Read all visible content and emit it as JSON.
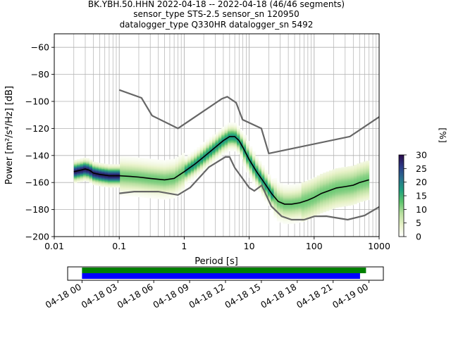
{
  "chart_data": {
    "type": "heatmap",
    "title_lines": [
      "BK.YBH.50.HHN   2022-04-18 -- 2022-04-18  (46/46 segments)",
      "sensor_type STS-2.5 sensor_sn 120950",
      "datalogger_type Q330HR datalogger_sn 5492"
    ],
    "xlabel": "Period [s]",
    "ylabel": "Power [m²/s⁴/Hz] [dB]",
    "x_scale": "log",
    "xlim": [
      0.01,
      1000
    ],
    "ylim": [
      -200,
      -50
    ],
    "x_ticks": [
      {
        "value": 0.01,
        "label": "0.01"
      },
      {
        "value": 0.1,
        "label": "0.1"
      },
      {
        "value": 1,
        "label": "1"
      },
      {
        "value": 10,
        "label": "10"
      },
      {
        "value": 100,
        "label": "100"
      },
      {
        "value": 1000,
        "label": "1000"
      }
    ],
    "y_ticks": [
      -60,
      -80,
      -100,
      -120,
      -140,
      -160,
      -180,
      -200
    ],
    "grid": true,
    "colorbar": {
      "label": "[%]",
      "range": [
        0,
        30
      ],
      "ticks": [
        0,
        5,
        10,
        15,
        20,
        25,
        30
      ],
      "colors": [
        "#ffffff",
        "#e8f2c8",
        "#b7df9f",
        "#5cc46c",
        "#1f9f7f",
        "#2a6e8e",
        "#2c3a86",
        "#2a0a4a"
      ]
    },
    "noise_models": [
      {
        "name": "high-noise-model",
        "x": [
          0.1,
          0.22,
          0.32,
          0.8,
          3.8,
          4.6,
          6.3,
          7.9,
          15.4,
          20,
          354.8,
          1000
        ],
        "y": [
          -91.5,
          -97.4,
          -110.5,
          -120,
          -98,
          -96.5,
          -101,
          -113.5,
          -120,
          -138.5,
          -126,
          -111.5
        ]
      },
      {
        "name": "low-noise-model",
        "x": [
          0.1,
          0.17,
          0.4,
          0.8,
          1.24,
          2.4,
          4.3,
          5,
          6,
          10,
          12,
          15.6,
          21.9,
          31.6,
          45,
          70,
          101,
          154,
          328,
          600,
          1000
        ],
        "y": [
          -168,
          -166.7,
          -166.7,
          -169.2,
          -163.7,
          -148.6,
          -141.1,
          -141.1,
          -149,
          -163.8,
          -166.2,
          -162.1,
          -177.5,
          -185,
          -187.5,
          -187.5,
          -185,
          -184.9,
          -187.5,
          -184.4,
          -178
        ]
      }
    ],
    "median_curve": {
      "x": [
        0.02,
        0.025,
        0.03,
        0.035,
        0.04,
        0.05,
        0.07,
        0.1,
        0.15,
        0.2,
        0.3,
        0.5,
        0.7,
        1,
        1.5,
        2,
        3,
        4,
        5,
        6,
        7,
        8,
        10,
        13,
        17,
        22,
        28,
        35,
        45,
        60,
        80,
        100,
        130,
        170,
        220,
        300,
        400,
        500,
        700
      ],
      "y": [
        -152,
        -151,
        -150,
        -151,
        -153,
        -154,
        -155,
        -155,
        -155.5,
        -156,
        -157,
        -158,
        -157,
        -152,
        -146,
        -141,
        -134,
        -129,
        -126,
        -126,
        -129,
        -134,
        -143,
        -152,
        -160,
        -168,
        -174,
        -176,
        -176,
        -175,
        -173,
        -171,
        -168,
        -166,
        -164,
        -163,
        -162,
        -160,
        -158
      ]
    },
    "segments": {
      "count": 46,
      "total": 46
    },
    "time_axis": {
      "tick_labels": [
        "04-18 00",
        "04-18 03",
        "04-18 06",
        "04-18 09",
        "04-18 12",
        "04-18 15",
        "04-18 18",
        "04-18 21",
        "04-19 00"
      ],
      "range_hours": [
        -1.2,
        25.2
      ],
      "coverage": [
        {
          "name": "data",
          "color": "#008000",
          "start_hours": 0,
          "end_hours": 23.75
        },
        {
          "name": "psd",
          "color": "#0000ff",
          "start_hours": 0,
          "end_hours": 23.25
        }
      ]
    }
  }
}
